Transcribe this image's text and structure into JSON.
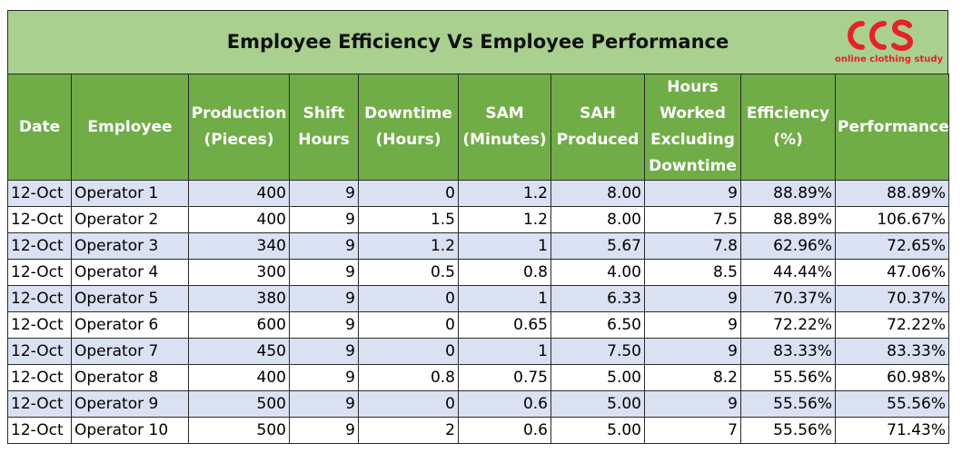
{
  "title": "Employee Efficiency Vs Employee Performance",
  "logo": {
    "mark": "CCS",
    "tagline": "online clothing study",
    "color": "#e8202a"
  },
  "colors": {
    "title_bg": "#a9d08e",
    "header_bg": "#70ad47",
    "band_row": "#d9e1f2"
  },
  "headers": [
    [
      "Date"
    ],
    [
      "Employee"
    ],
    [
      "Production",
      "(Pieces)"
    ],
    [
      "Shift",
      "Hours"
    ],
    [
      "Downtime",
      "(Hours)"
    ],
    [
      "SAM",
      "(Minutes)"
    ],
    [
      "SAH",
      "Produced"
    ],
    [
      "Hours",
      "Worked",
      "Excluding",
      "Downtime"
    ],
    [
      "Efficiency",
      "(%)"
    ],
    [
      "Performance"
    ]
  ],
  "rows": [
    [
      "12-Oct",
      "Operator 1",
      "400",
      "9",
      "0",
      "1.2",
      "8.00",
      "9",
      "88.89%",
      "88.89%"
    ],
    [
      "12-Oct",
      "Operator 2",
      "400",
      "9",
      "1.5",
      "1.2",
      "8.00",
      "7.5",
      "88.89%",
      "106.67%"
    ],
    [
      "12-Oct",
      "Operator 3",
      "340",
      "9",
      "1.2",
      "1",
      "5.67",
      "7.8",
      "62.96%",
      "72.65%"
    ],
    [
      "12-Oct",
      "Operator 4",
      "300",
      "9",
      "0.5",
      "0.8",
      "4.00",
      "8.5",
      "44.44%",
      "47.06%"
    ],
    [
      "12-Oct",
      "Operator 5",
      "380",
      "9",
      "0",
      "1",
      "6.33",
      "9",
      "70.37%",
      "70.37%"
    ],
    [
      "12-Oct",
      "Operator 6",
      "600",
      "9",
      "0",
      "0.65",
      "6.50",
      "9",
      "72.22%",
      "72.22%"
    ],
    [
      "12-Oct",
      "Operator 7",
      "450",
      "9",
      "0",
      "1",
      "7.50",
      "9",
      "83.33%",
      "83.33%"
    ],
    [
      "12-Oct",
      "Operator 8",
      "400",
      "9",
      "0.8",
      "0.75",
      "5.00",
      "8.2",
      "55.56%",
      "60.98%"
    ],
    [
      "12-Oct",
      "Operator 9",
      "500",
      "9",
      "0",
      "0.6",
      "5.00",
      "9",
      "55.56%",
      "55.56%"
    ],
    [
      "12-Oct",
      "Operator 10",
      "500",
      "9",
      "2",
      "0.6",
      "5.00",
      "7",
      "55.56%",
      "71.43%"
    ]
  ]
}
